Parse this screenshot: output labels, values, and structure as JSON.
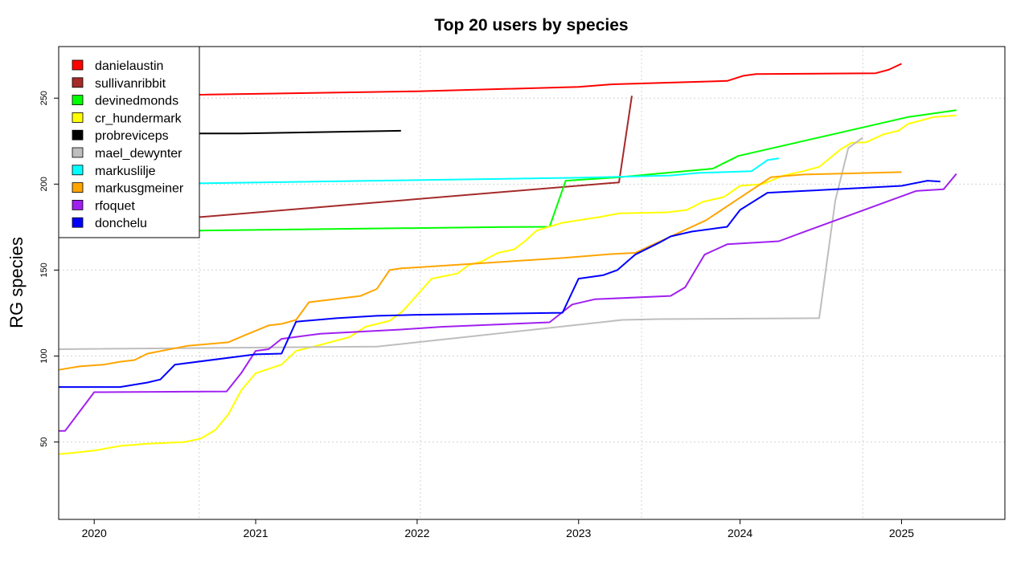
{
  "chart_data": {
    "type": "line",
    "title": "Top 20 users by species",
    "xlabel": "",
    "ylabel": "RG species",
    "xlim": [
      2019.78,
      2025.64
    ],
    "ylim": [
      5,
      280
    ],
    "x_ticks": [
      2020,
      2021,
      2022,
      2023,
      2024,
      2025
    ],
    "x_tick_labels": [
      "2020",
      "2021",
      "2022",
      "2023",
      "2024",
      "2025"
    ],
    "y_ticks": [
      50,
      100,
      150,
      200,
      250
    ],
    "y_tick_labels": [
      "50",
      "100",
      "150",
      "200",
      "250"
    ],
    "grid": true,
    "x_grid": [
      2020.65,
      2022.02,
      2023.39,
      2024.76
    ],
    "y_grid": [
      50,
      100,
      150,
      200,
      250
    ],
    "legend_position": "top-left",
    "series": [
      {
        "name": "danielaustin",
        "color": "#ff0000",
        "points": [
          [
            2019.78,
            251
          ],
          [
            2020.65,
            252
          ],
          [
            2022.0,
            254
          ],
          [
            2023.0,
            256.5
          ],
          [
            2023.2,
            258
          ],
          [
            2023.92,
            260
          ],
          [
            2024.02,
            263
          ],
          [
            2024.1,
            264
          ],
          [
            2024.84,
            264.5
          ],
          [
            2024.92,
            266.5
          ],
          [
            2025.0,
            270
          ]
        ]
      },
      {
        "name": "sullivanribbit",
        "color": "#a52a2a",
        "points": [
          [
            2019.78,
            178
          ],
          [
            2020.65,
            180.8
          ],
          [
            2023.25,
            201
          ],
          [
            2023.33,
            251.4
          ]
        ]
      },
      {
        "name": "devinedmonds",
        "color": "#00ff00",
        "points": [
          [
            2019.78,
            173
          ],
          [
            2020.65,
            173
          ],
          [
            2022.5,
            175
          ],
          [
            2022.82,
            175.2
          ],
          [
            2022.92,
            202
          ],
          [
            2023.25,
            204
          ],
          [
            2023.54,
            206.5
          ],
          [
            2023.83,
            209
          ],
          [
            2023.99,
            216.4
          ],
          [
            2025.04,
            239
          ],
          [
            2025.34,
            243
          ]
        ]
      },
      {
        "name": "cr_hundermark",
        "color": "#ffff00",
        "points": [
          [
            2019.78,
            43
          ],
          [
            2019.85,
            43.5
          ],
          [
            2020.0,
            45
          ],
          [
            2020.16,
            47.7
          ],
          [
            2020.33,
            49
          ],
          [
            2020.56,
            50
          ],
          [
            2020.66,
            52
          ],
          [
            2020.75,
            57
          ],
          [
            2020.83,
            66
          ],
          [
            2020.91,
            80
          ],
          [
            2021.0,
            90
          ],
          [
            2021.16,
            95
          ],
          [
            2021.25,
            103
          ],
          [
            2021.4,
            106.5
          ],
          [
            2021.58,
            111
          ],
          [
            2021.68,
            117
          ],
          [
            2021.83,
            120.5
          ],
          [
            2021.91,
            126
          ],
          [
            2022.09,
            145
          ],
          [
            2022.25,
            148
          ],
          [
            2022.32,
            153
          ],
          [
            2022.4,
            155
          ],
          [
            2022.5,
            160
          ],
          [
            2022.6,
            162
          ],
          [
            2022.67,
            167
          ],
          [
            2022.74,
            173
          ],
          [
            2022.9,
            177.5
          ],
          [
            2023.14,
            181
          ],
          [
            2023.25,
            183
          ],
          [
            2023.55,
            183.6
          ],
          [
            2023.67,
            185
          ],
          [
            2023.77,
            189.7
          ],
          [
            2023.9,
            192.5
          ],
          [
            2024.0,
            199
          ],
          [
            2024.14,
            200
          ],
          [
            2024.27,
            205
          ],
          [
            2024.39,
            207.5
          ],
          [
            2024.49,
            210
          ],
          [
            2024.62,
            220
          ],
          [
            2024.69,
            224
          ],
          [
            2024.78,
            224.3
          ],
          [
            2024.89,
            229
          ],
          [
            2024.98,
            231
          ],
          [
            2025.04,
            235
          ],
          [
            2025.2,
            239
          ],
          [
            2025.34,
            240
          ]
        ]
      },
      {
        "name": "probreviceps",
        "color": "#000000",
        "points": [
          [
            2019.78,
            229.3
          ],
          [
            2020.91,
            229.5
          ],
          [
            2021.9,
            231
          ]
        ]
      },
      {
        "name": "mael_dewynter",
        "color": "#bebebe",
        "points": [
          [
            2019.78,
            104
          ],
          [
            2021.75,
            105.5
          ],
          [
            2022.0,
            108
          ],
          [
            2023.27,
            121
          ],
          [
            2023.5,
            121.5
          ],
          [
            2024.49,
            122
          ],
          [
            2024.59,
            190.6
          ],
          [
            2024.67,
            221
          ],
          [
            2024.76,
            227
          ]
        ]
      },
      {
        "name": "markuslilje",
        "color": "#00ffff",
        "points": [
          [
            2019.78,
            200.5
          ],
          [
            2020.65,
            200.5
          ],
          [
            2023.0,
            203.7
          ],
          [
            2023.57,
            205
          ],
          [
            2023.74,
            206.5
          ],
          [
            2024.07,
            207.5
          ],
          [
            2024.17,
            214
          ],
          [
            2024.24,
            215
          ]
        ]
      },
      {
        "name": "markusgmeiner",
        "color": "#ffa500",
        "points": [
          [
            2019.78,
            92
          ],
          [
            2019.91,
            94
          ],
          [
            2020.06,
            95
          ],
          [
            2020.16,
            96.7
          ],
          [
            2020.25,
            97.7
          ],
          [
            2020.33,
            101.4
          ],
          [
            2020.58,
            106
          ],
          [
            2020.83,
            108
          ],
          [
            2020.93,
            112
          ],
          [
            2021.08,
            117.8
          ],
          [
            2021.16,
            118.7
          ],
          [
            2021.25,
            121
          ],
          [
            2021.33,
            131.3
          ],
          [
            2021.65,
            135
          ],
          [
            2021.75,
            139
          ],
          [
            2021.83,
            150
          ],
          [
            2021.9,
            151
          ],
          [
            2022.9,
            157
          ],
          [
            2023.2,
            159.3
          ],
          [
            2023.35,
            160
          ],
          [
            2023.79,
            179
          ],
          [
            2024.19,
            204
          ],
          [
            2024.39,
            205.6
          ],
          [
            2025.0,
            207
          ]
        ]
      },
      {
        "name": "rfoquet",
        "color": "#a020f0",
        "points": [
          [
            2019.78,
            56.5
          ],
          [
            2019.82,
            56.5
          ],
          [
            2020.0,
            79
          ],
          [
            2020.82,
            79.4
          ],
          [
            2020.91,
            90
          ],
          [
            2021.0,
            103
          ],
          [
            2021.08,
            104
          ],
          [
            2021.16,
            110
          ],
          [
            2021.4,
            113
          ],
          [
            2021.9,
            115.4
          ],
          [
            2022.15,
            117
          ],
          [
            2022.82,
            119.6
          ],
          [
            2022.96,
            130
          ],
          [
            2023.1,
            133
          ],
          [
            2023.57,
            135
          ],
          [
            2023.66,
            140
          ],
          [
            2023.78,
            159
          ],
          [
            2023.92,
            165
          ],
          [
            2024.24,
            166.8
          ],
          [
            2024.39,
            172
          ],
          [
            2025.09,
            196
          ],
          [
            2025.26,
            197
          ],
          [
            2025.34,
            206
          ]
        ]
      },
      {
        "name": "donchelu",
        "color": "#0000ff",
        "points": [
          [
            2019.78,
            82
          ],
          [
            2020.16,
            82
          ],
          [
            2020.33,
            84.6
          ],
          [
            2020.41,
            86.4
          ],
          [
            2020.5,
            95
          ],
          [
            2021.0,
            101
          ],
          [
            2021.16,
            101.4
          ],
          [
            2021.25,
            120
          ],
          [
            2021.5,
            122
          ],
          [
            2021.75,
            123.4
          ],
          [
            2022.0,
            124
          ],
          [
            2022.9,
            125.2
          ],
          [
            2023.0,
            145
          ],
          [
            2023.15,
            147
          ],
          [
            2023.24,
            150
          ],
          [
            2023.35,
            159
          ],
          [
            2023.5,
            166
          ],
          [
            2023.57,
            169.6
          ],
          [
            2023.7,
            172.4
          ],
          [
            2023.92,
            175.2
          ],
          [
            2024.0,
            185
          ],
          [
            2024.17,
            195
          ],
          [
            2024.39,
            196
          ],
          [
            2025.0,
            199
          ],
          [
            2025.16,
            202
          ],
          [
            2025.24,
            201.5
          ]
        ]
      }
    ]
  }
}
